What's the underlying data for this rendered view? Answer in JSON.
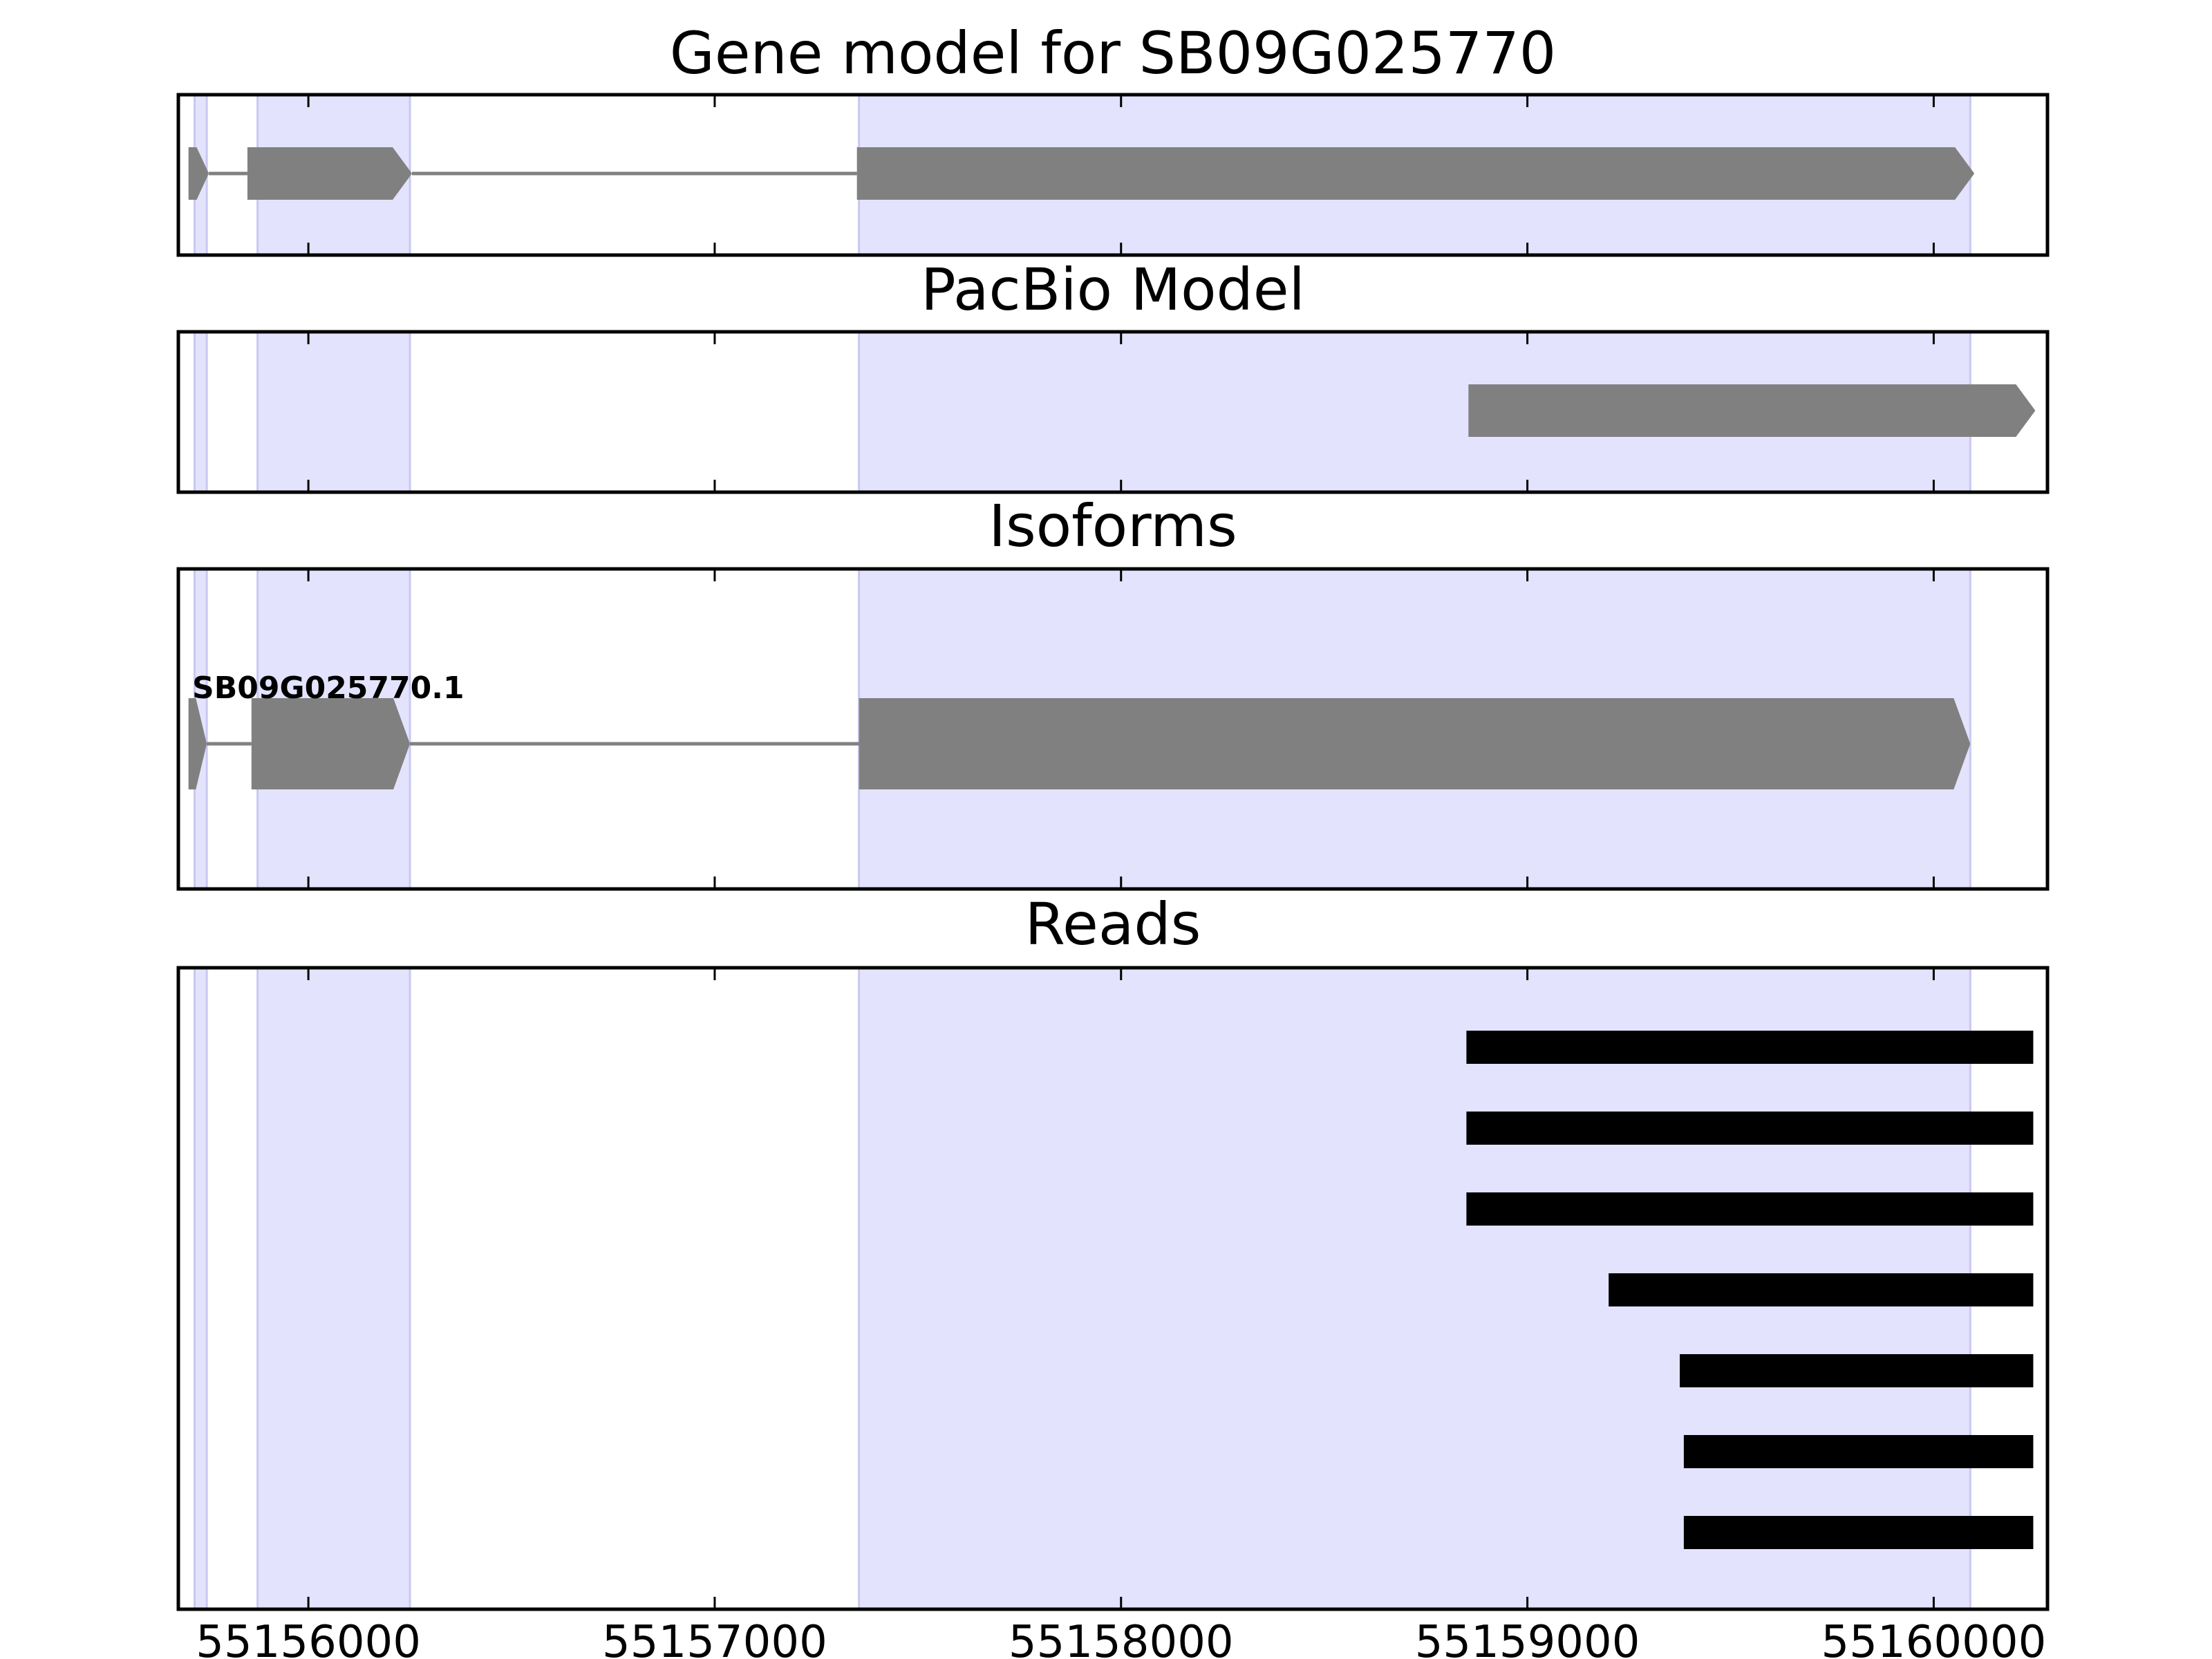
{
  "chart_data": {
    "type": "gene-track",
    "xlim": [
      55155680,
      55160280
    ],
    "x_ticks": [
      55156000,
      55157000,
      55158000,
      55159000,
      55160000
    ],
    "x_tick_labels": [
      "55156000",
      "55157000",
      "55158000",
      "55159000",
      "55160000"
    ],
    "grid": false,
    "exon_highlight_color": "#e3e3fd",
    "exon_highlight_edge": "#c8c8f0",
    "exon_highlights": [
      {
        "start": 55155720,
        "end": 55155750
      },
      {
        "start": 55155875,
        "end": 55156250
      },
      {
        "start": 55157355,
        "end": 55160090
      }
    ],
    "panels": [
      {
        "key": "gene",
        "title": "Gene model for SB09G025770",
        "features": [
          {
            "exons": [
              [
                55155705,
                55155755
              ],
              [
                55155850,
                55156255
              ],
              [
                55157350,
                55160100
              ]
            ],
            "strand": "+",
            "color": "#808080"
          }
        ]
      },
      {
        "key": "pacbio",
        "title": "PacBio Model",
        "features": [
          {
            "exons": [
              [
                55158855,
                55160250
              ]
            ],
            "strand": "+",
            "color": "#808080"
          }
        ]
      },
      {
        "key": "isoforms",
        "title": "Isoforms",
        "features": [
          {
            "label": "SB09G025770.1",
            "exons": [
              [
                55155705,
                55155750
              ],
              [
                55155860,
                55156250
              ],
              [
                55157355,
                55160090
              ]
            ],
            "strand": "+",
            "color": "#808080"
          }
        ]
      },
      {
        "key": "reads",
        "title": "Reads",
        "read_color": "#000000",
        "reads": [
          {
            "start": 55158850,
            "end": 55160245
          },
          {
            "start": 55158850,
            "end": 55160245
          },
          {
            "start": 55158850,
            "end": 55160245
          },
          {
            "start": 55159200,
            "end": 55160245
          },
          {
            "start": 55159375,
            "end": 55160245
          },
          {
            "start": 55159385,
            "end": 55160245
          },
          {
            "start": 55159385,
            "end": 55160245
          }
        ]
      }
    ]
  }
}
